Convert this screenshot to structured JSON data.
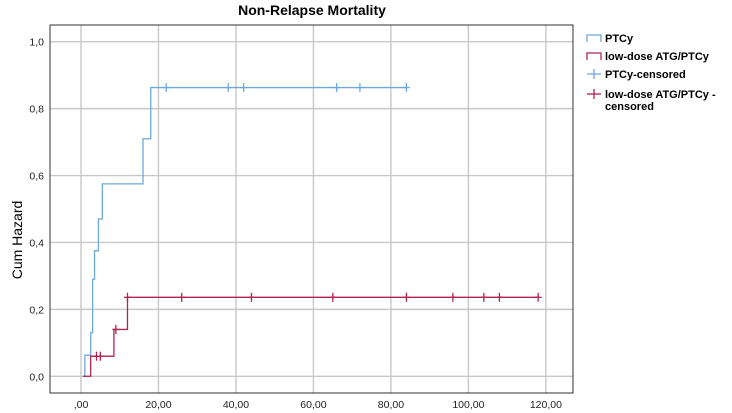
{
  "chart_data": {
    "type": "line",
    "title": "Non-Relapse Mortality",
    "xlabel": "",
    "ylabel": "Cum Hazard",
    "xlim": [
      -8,
      127
    ],
    "ylim": [
      -0.05,
      1.05
    ],
    "x_ticks": [
      0,
      20,
      40,
      60,
      80,
      100,
      120
    ],
    "x_tick_labels": [
      ",00",
      "20,00",
      "40,00",
      "60,00",
      "80,00",
      "100,00",
      "120,00"
    ],
    "y_ticks": [
      0,
      0.2,
      0.4,
      0.6,
      0.8,
      1.0
    ],
    "y_tick_labels": [
      "0,0",
      "0,2",
      "0,4",
      "0,6",
      "0,8",
      "1,0"
    ],
    "grid": true,
    "legend_position": "right",
    "series": [
      {
        "name": "PTCy",
        "color": "#6fa8dc",
        "steps": [
          [
            0.5,
            0
          ],
          [
            1,
            0.063
          ],
          [
            2.5,
            0.13
          ],
          [
            3,
            0.29
          ],
          [
            3.5,
            0.375
          ],
          [
            4.5,
            0.47
          ],
          [
            5.5,
            0.575
          ],
          [
            16,
            0.71
          ],
          [
            18,
            0.863
          ],
          [
            84,
            0.863
          ]
        ],
        "censored": [
          22,
          38,
          42,
          66,
          72,
          84
        ]
      },
      {
        "name": "low-dose ATG/PTCy",
        "color": "#b0244f",
        "steps": [
          [
            0.5,
            0
          ],
          [
            2,
            0
          ],
          [
            2.5,
            0.06
          ],
          [
            8.5,
            0.14
          ],
          [
            12,
            0.236
          ],
          [
            118,
            0.236
          ]
        ],
        "censored": [
          4,
          5,
          9,
          12,
          26,
          44,
          65,
          84,
          96,
          104,
          108,
          118
        ]
      }
    ],
    "legend": [
      {
        "label": "PTCy",
        "color": "#6fa8dc",
        "kind": "line"
      },
      {
        "label": "low-dose ATG/PTCy",
        "color": "#b0244f",
        "kind": "line"
      },
      {
        "label": "PTCy-censored",
        "color": "#6fa8dc",
        "kind": "censor"
      },
      {
        "label_lines": [
          "low-dose ATG/PTCy -",
          "censored"
        ],
        "color": "#b0244f",
        "kind": "censor"
      }
    ]
  }
}
